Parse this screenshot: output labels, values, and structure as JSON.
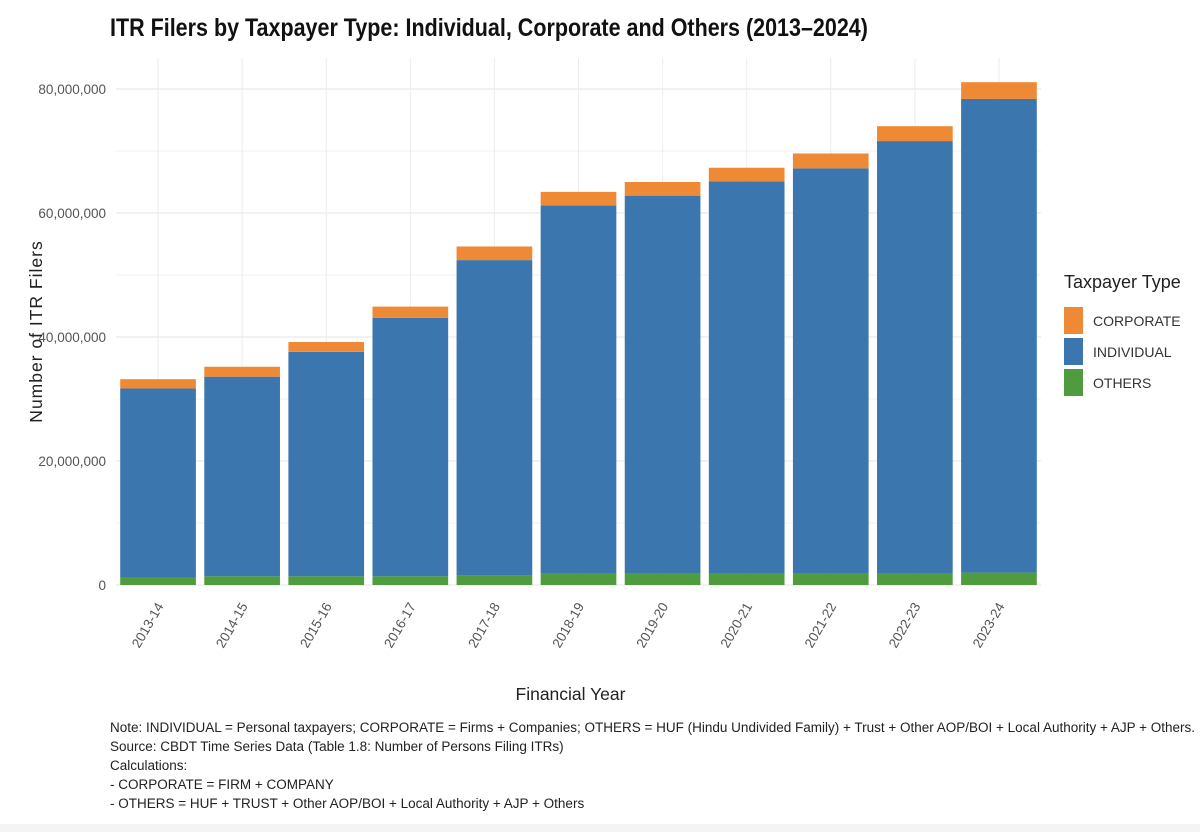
{
  "chart_data": {
    "type": "bar",
    "stacked": true,
    "title": "ITR Filers by Taxpayer Type: Individual, Corporate and Others (2013–2024)",
    "xlabel": "Financial Year",
    "ylabel": "Number of ITR Filers",
    "categories": [
      "2013-14",
      "2014-15",
      "2015-16",
      "2016-17",
      "2017-18",
      "2018-19",
      "2019-20",
      "2020-21",
      "2021-22",
      "2022-23",
      "2023-24"
    ],
    "ylim": [
      0,
      85000000
    ],
    "yticks": [
      0,
      20000000,
      40000000,
      60000000,
      80000000
    ],
    "ytick_labels": [
      "0",
      "20,000,000",
      "40,000,000",
      "60,000,000",
      "80,000,000"
    ],
    "grid": true,
    "legend": {
      "title": "Taxpayer Type",
      "placement": "right",
      "items": [
        {
          "label": "CORPORATE",
          "color": "#ee8a36"
        },
        {
          "label": "INDIVIDUAL",
          "color": "#3b76ae"
        },
        {
          "label": "OTHERS",
          "color": "#4f9c3f"
        }
      ]
    },
    "series": [
      {
        "name": "OTHERS",
        "color": "#4f9c3f",
        "values": [
          1200000,
          1400000,
          1400000,
          1400000,
          1600000,
          1800000,
          1800000,
          1800000,
          1800000,
          1800000,
          2000000
        ]
      },
      {
        "name": "INDIVIDUAL",
        "color": "#3b76ae",
        "values": [
          30500000,
          32200000,
          36200000,
          41700000,
          50800000,
          59400000,
          61000000,
          63300000,
          65400000,
          69800000,
          76400000
        ]
      },
      {
        "name": "CORPORATE",
        "color": "#ee8a36",
        "values": [
          1500000,
          1600000,
          1600000,
          1800000,
          2200000,
          2200000,
          2200000,
          2200000,
          2400000,
          2400000,
          2700000
        ]
      }
    ]
  },
  "notes": [
    "Note: INDIVIDUAL = Personal taxpayers; CORPORATE = Firms + Companies; OTHERS = HUF (Hindu Undivided Family) + Trust + Other AOP/BOI + Local Authority + AJP + Others.",
    "Source: CBDT Time Series Data (Table 1.8: Number of Persons Filing ITRs)",
    "Calculations:",
    "- CORPORATE = FIRM + COMPANY",
    "- OTHERS = HUF + TRUST + Other AOP/BOI + Local Authority + AJP + Others"
  ]
}
